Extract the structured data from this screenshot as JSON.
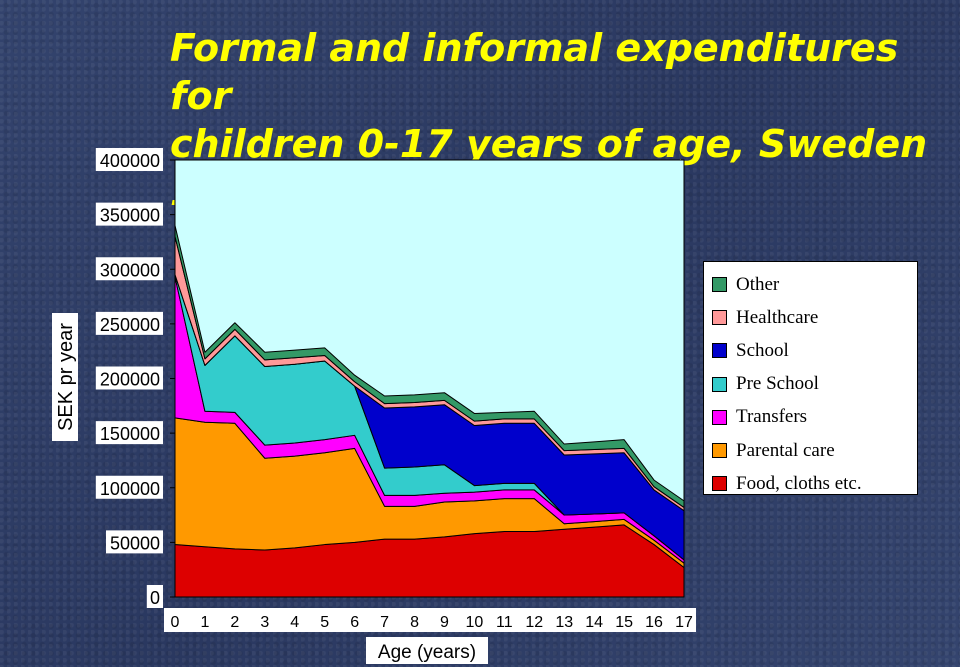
{
  "title_lines": [
    "Formal and informal expenditures for",
    "children 0-17 years of age, Sweden 1995"
  ],
  "chart_data": {
    "type": "area",
    "stacked": true,
    "title": "Formal and informal expenditures for children 0-17 years of age, Sweden 1995",
    "xlabel": "Age (years)",
    "ylabel": "SEK pr year",
    "x": [
      0,
      1,
      2,
      3,
      4,
      5,
      6,
      7,
      8,
      9,
      10,
      11,
      12,
      13,
      14,
      15,
      16,
      17
    ],
    "ylim": [
      0,
      400000
    ],
    "yticks": [
      0,
      50000,
      100000,
      150000,
      200000,
      250000,
      300000,
      350000,
      400000
    ],
    "grid": false,
    "legend_position": "right",
    "series": [
      {
        "name": "Food, cloths etc.",
        "color": "#dd0000",
        "values": [
          48000,
          46000,
          44000,
          43000,
          45000,
          48000,
          50000,
          53000,
          53000,
          55000,
          58000,
          60000,
          60000,
          62000,
          64000,
          66000,
          48000,
          27000
        ]
      },
      {
        "name": "Parental care",
        "color": "#ff9900",
        "values": [
          116000,
          114000,
          115000,
          84000,
          84000,
          84000,
          86000,
          30000,
          30000,
          32000,
          30000,
          30000,
          30000,
          5000,
          5000,
          5000,
          4000,
          4000
        ]
      },
      {
        "name": "Transfers",
        "color": "#ff00ff",
        "values": [
          129000,
          10000,
          10000,
          12000,
          12000,
          12000,
          12000,
          10000,
          10000,
          8000,
          8000,
          8000,
          8000,
          8000,
          7000,
          6000,
          4000,
          3000
        ]
      },
      {
        "name": "Pre School",
        "color": "#33cccc",
        "values": [
          2000,
          42000,
          70000,
          72000,
          72000,
          72000,
          45000,
          25000,
          26000,
          26000,
          6000,
          6000,
          6000,
          0,
          0,
          0,
          0,
          0
        ]
      },
      {
        "name": "School",
        "color": "#0000cc",
        "values": [
          0,
          0,
          0,
          0,
          0,
          0,
          0,
          55000,
          55000,
          55000,
          55000,
          55000,
          55000,
          55000,
          55000,
          55000,
          42000,
          45000
        ]
      },
      {
        "name": "Healthcare",
        "color": "#ff9999",
        "values": [
          35000,
          6000,
          6000,
          6000,
          6000,
          5000,
          4000,
          4000,
          4000,
          4000,
          4000,
          4000,
          4000,
          4000,
          4000,
          4000,
          3000,
          3000
        ]
      },
      {
        "name": "Other",
        "color": "#339966",
        "values": [
          10000,
          6000,
          6000,
          7000,
          7000,
          7000,
          6000,
          7000,
          7000,
          7000,
          7000,
          6000,
          7000,
          6000,
          7000,
          8000,
          6000,
          6000
        ]
      }
    ]
  },
  "legend_order": [
    "Other",
    "Healthcare",
    "School",
    "Pre School",
    "Transfers",
    "Parental care",
    "Food, cloths etc."
  ]
}
